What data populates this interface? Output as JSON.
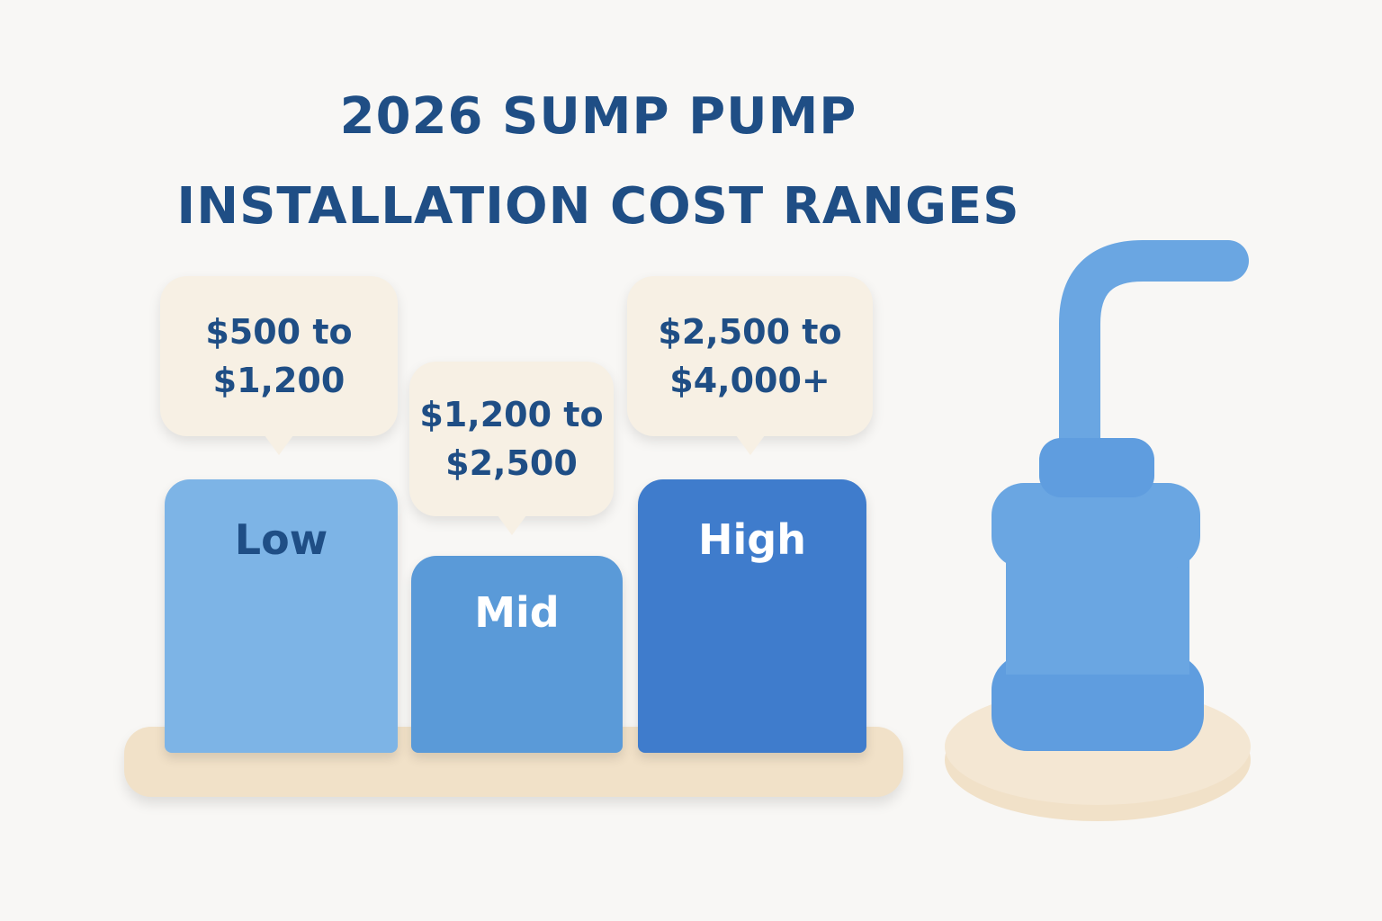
{
  "title": "2026 SUMP PUMP INSTALLATION COST RANGES",
  "tiers": [
    {
      "label": "Low",
      "range_lines": [
        "$500 to",
        "$1,200"
      ]
    },
    {
      "label": "Mid",
      "range_lines": [
        "$1,200 to",
        "$2,500"
      ]
    },
    {
      "label": "High",
      "range_lines": [
        "$2,500 to",
        "$4,000+"
      ]
    }
  ]
}
